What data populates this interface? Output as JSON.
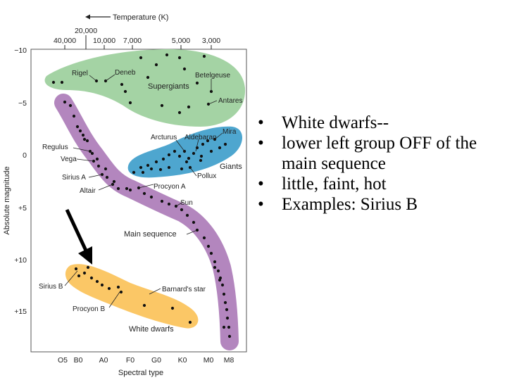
{
  "diagram": {
    "top_axis_title": "Temperature (K)",
    "top_axis_ticks": [
      "20,000",
      "40,000",
      "10,000",
      "7,000",
      "5,000",
      "3,000"
    ],
    "y_axis_title": "Absolute magnitude",
    "y_axis_ticks": [
      "−10",
      "−5",
      "0",
      "+5",
      "+10",
      "+15"
    ],
    "x_axis_title": "Spectral type",
    "x_axis_ticks": [
      "O5",
      "B0",
      "A0",
      "F0",
      "G0",
      "K0",
      "M0",
      "M8"
    ],
    "regions": {
      "supergiants": "Supergiants",
      "giants": "Giants",
      "main_sequence": "Main sequence",
      "white_dwarfs": "White dwarfs"
    },
    "stars": {
      "rigel": "Rigel",
      "deneb": "Deneb",
      "betelgeuse": "Betelgeuse",
      "antares": "Antares",
      "mira": "Mira",
      "arcturus": "Arcturus",
      "aldebaran": "Aldebaran",
      "pollux": "Pollux",
      "regulus": "Regulus",
      "vega": "Vega",
      "sirius_a": "Sirius A",
      "altair": "Altair",
      "procyon_a": "Procyon A",
      "sun": "Sun",
      "sirius_b": "Sirius B",
      "procyon_b": "Procyon B",
      "barnards_star": "Barnard's star"
    },
    "colors": {
      "supergiants": "#a4d3a4",
      "giants": "#4ea6cf",
      "main_sequence": "#b386be",
      "white_dwarfs": "#fbc766",
      "dots": "#111111",
      "arrow": "#000000"
    }
  },
  "bullets": [
    "White dwarfs--",
    "lower left group OFF of the main sequence",
    "little, faint, hot",
    "Examples:  Sirius B"
  ]
}
